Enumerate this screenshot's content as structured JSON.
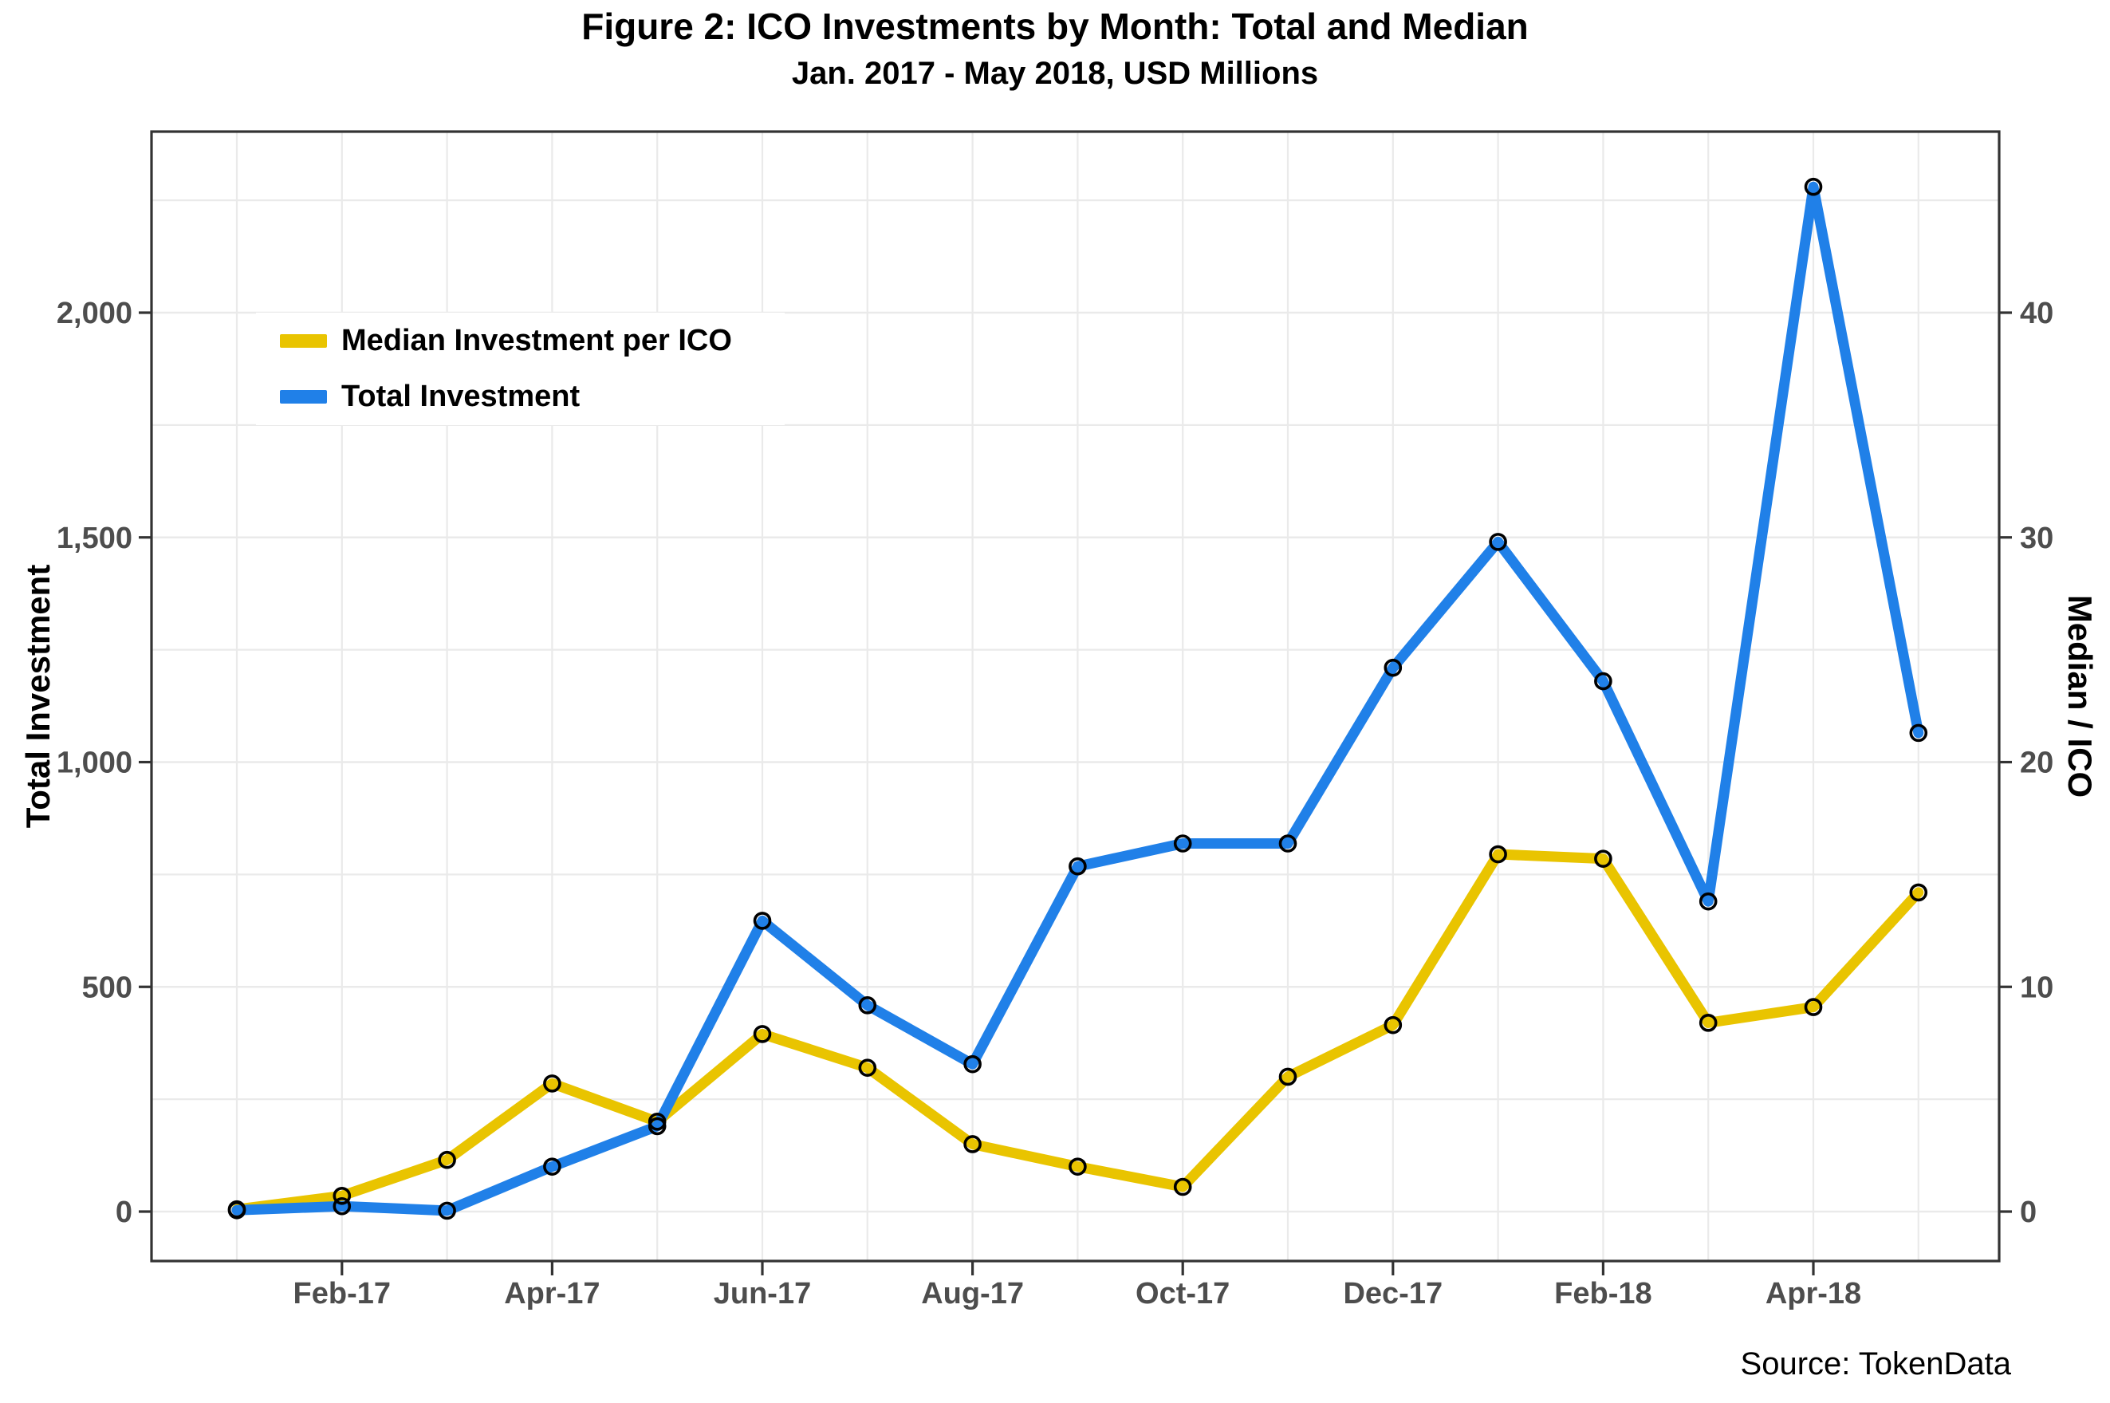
{
  "title": "Figure 2: ICO Investments by Month: Total and Median",
  "subtitle": "Jan. 2017 - May 2018, USD Millions",
  "source_note": "Source: TokenData",
  "colors": {
    "total_line": "#2080E8",
    "median_line": "#E9C400",
    "gridline": "#eaeaea",
    "panel_border": "#333333",
    "tick_text": "#4d4d4d",
    "marker_stroke": "#000000",
    "background": "#ffffff"
  },
  "legend": {
    "items": [
      {
        "label": "Median Investment per ICO",
        "color_key": "median_line"
      },
      {
        "label": "Total Investment",
        "color_key": "total_line"
      }
    ]
  },
  "chart_data": {
    "type": "line",
    "x": [
      "Jan-17",
      "Feb-17",
      "Mar-17",
      "Apr-17",
      "May-17",
      "Jun-17",
      "Jul-17",
      "Aug-17",
      "Sep-17",
      "Oct-17",
      "Nov-17",
      "Dec-17",
      "Jan-18",
      "Feb-18",
      "Mar-18",
      "Apr-18",
      "May-18"
    ],
    "series": [
      {
        "name": "Median Investment per ICO",
        "axis": "right",
        "color_key": "median_line",
        "values": [
          0.1,
          0.7,
          2.3,
          5.7,
          4.0,
          7.9,
          6.4,
          3.0,
          2.0,
          1.1,
          6.0,
          8.3,
          15.9,
          15.7,
          8.4,
          9.1,
          14.2
        ]
      },
      {
        "name": "Total Investment",
        "axis": "left",
        "color_key": "total_line",
        "values": [
          3,
          12,
          2,
          100,
          190,
          647,
          459,
          328,
          768,
          819,
          819,
          1210,
          1490,
          1180,
          690,
          2280,
          1065
        ]
      }
    ],
    "left_axis": {
      "title": "Total Investment",
      "tick_values": [
        0,
        500,
        1000,
        1500,
        2000
      ],
      "tick_labels": [
        "0",
        "500",
        "1,000",
        "1,500",
        "2,000"
      ],
      "minor_step": 250,
      "ylim": [
        0,
        2400
      ]
    },
    "right_axis": {
      "title": "Median / ICO",
      "tick_values": [
        0,
        10,
        20,
        30,
        40
      ],
      "tick_labels": [
        "0",
        "10",
        "20",
        "30",
        "40"
      ],
      "ylim": [
        0,
        48
      ]
    },
    "x_ticks": {
      "month_indices": [
        1,
        3,
        5,
        7,
        9,
        11,
        13,
        15
      ],
      "labels": [
        "Feb-17",
        "Apr-17",
        "Jun-17",
        "Aug-17",
        "Oct-17",
        "Dec-17",
        "Feb-18",
        "Apr-18"
      ]
    },
    "grid": true,
    "legend_position": "top-left",
    "marker": "open-circle"
  }
}
